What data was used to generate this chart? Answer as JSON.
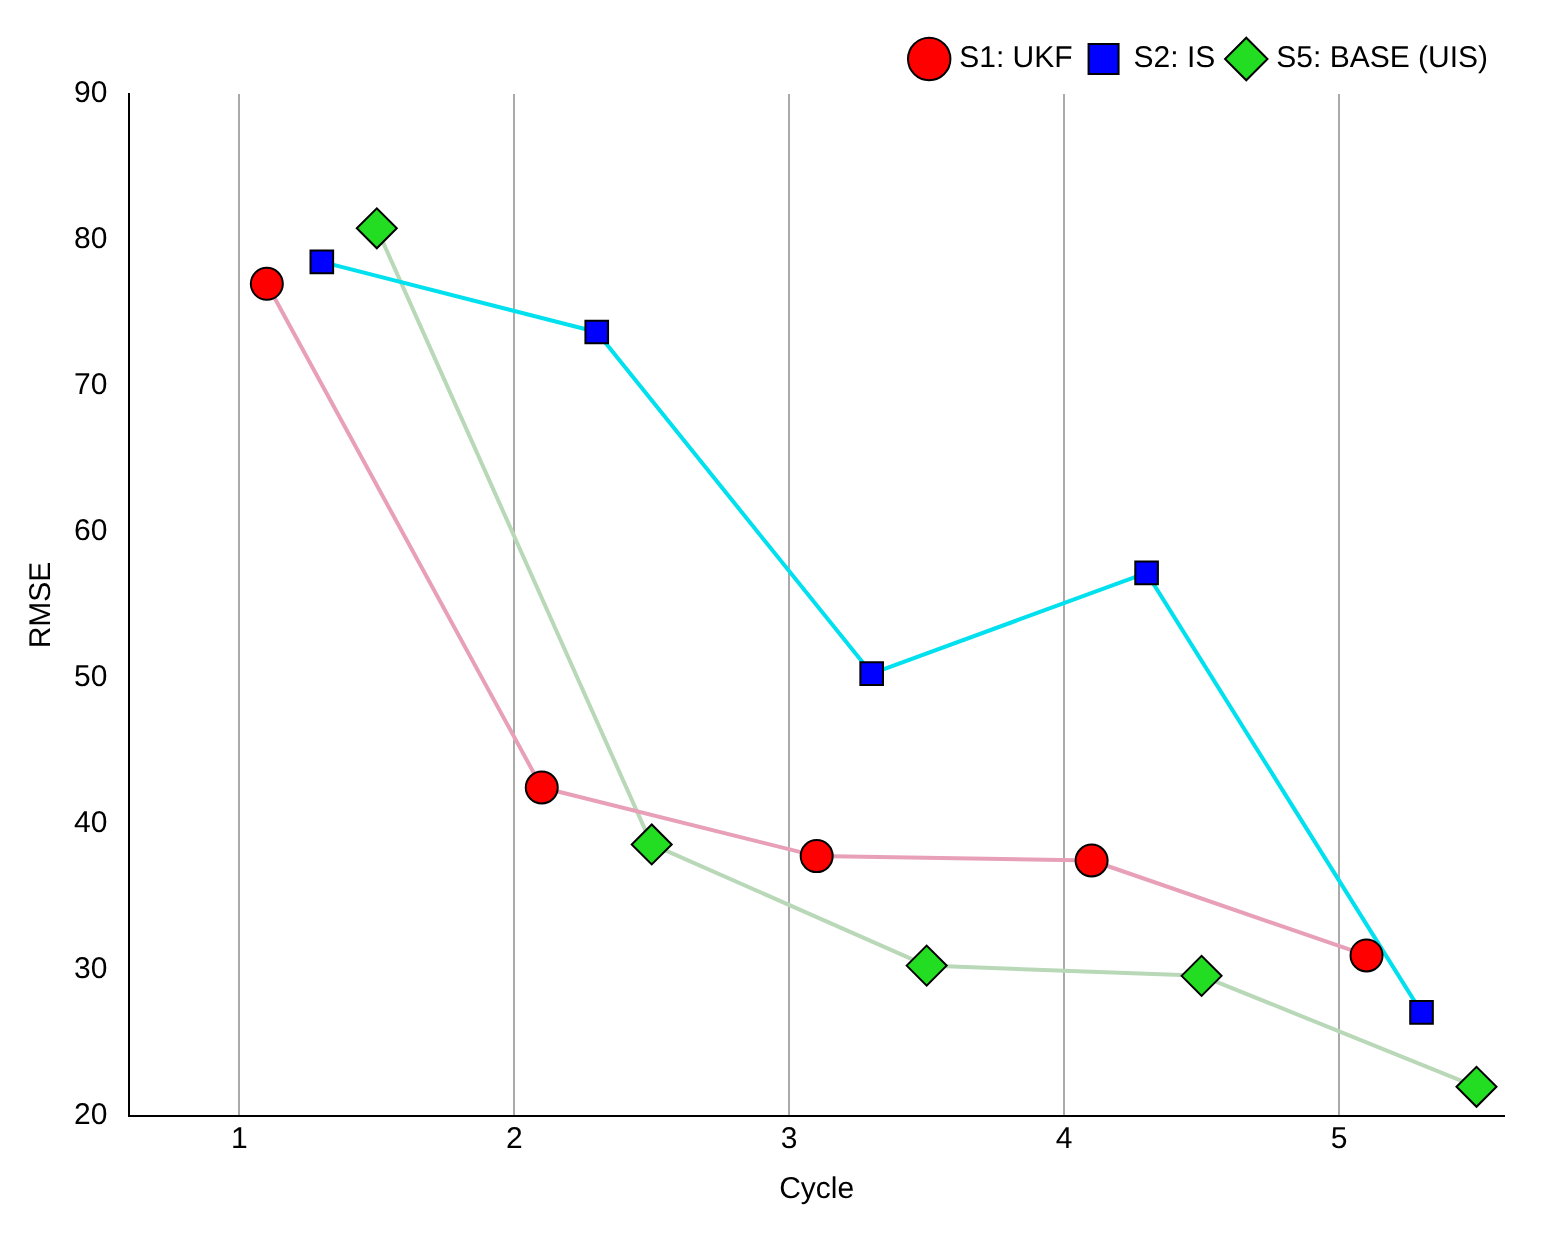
{
  "chart_data": {
    "type": "line",
    "xlabel": "Cycle",
    "ylabel": "RMSE",
    "xlim": [
      0.6,
      5.6
    ],
    "xticks": [
      1,
      2,
      3,
      4,
      5
    ],
    "ylim": [
      20,
      90
    ],
    "yticks": [
      20,
      30,
      40,
      50,
      60,
      70,
      80,
      90
    ],
    "grid": "x",
    "legend": "top right",
    "series": [
      {
        "name": "S1: UKF",
        "color": "#ff0000",
        "marker": "circle",
        "x": [
          1.1,
          2.1,
          3.1,
          4.1,
          5.1
        ],
        "values": [
          77,
          42.5,
          37.8,
          37.5,
          31
        ]
      },
      {
        "name": "S2: IS",
        "color": "#0000ff",
        "marker": "square",
        "x": [
          1.3,
          2.3,
          3.3,
          4.3,
          5.3
        ],
        "values": [
          78.5,
          73.7,
          50.3,
          57.2,
          27.1
        ]
      },
      {
        "name": "S5: BASE (UIS)",
        "color": "#22dd22",
        "marker": "diamond",
        "x": [
          1.5,
          2.5,
          3.5,
          4.5,
          5.5
        ],
        "values": [
          80.8,
          38.6,
          30.3,
          29.6,
          22
        ]
      }
    ]
  }
}
